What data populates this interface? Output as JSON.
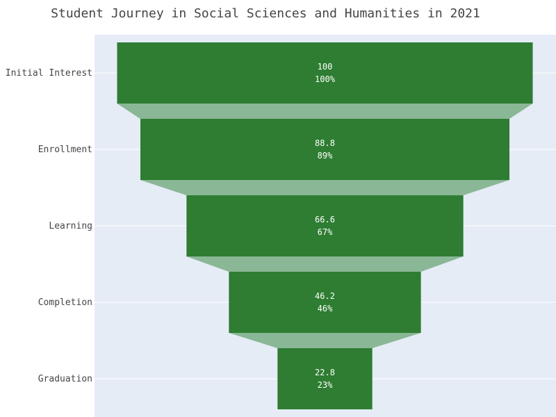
{
  "chart_data": {
    "type": "funnel",
    "title": "Student Journey in Social Sciences and Humanities in 2021",
    "categories": [
      "Initial Interest",
      "Enrollment",
      "Learning",
      "Completion",
      "Graduation"
    ],
    "values": [
      100,
      88.8,
      66.6,
      46.2,
      22.8
    ],
    "percent_labels": [
      "100%",
      "89%",
      "67%",
      "46%",
      "23%"
    ],
    "value_labels": [
      "100",
      "88.8",
      "66.6",
      "46.2",
      "22.8"
    ],
    "colors": {
      "bar": "#2e7d32",
      "connector": "#8ab796",
      "plot_bg": "#e5ecf6",
      "grid": "#ffffff"
    }
  }
}
